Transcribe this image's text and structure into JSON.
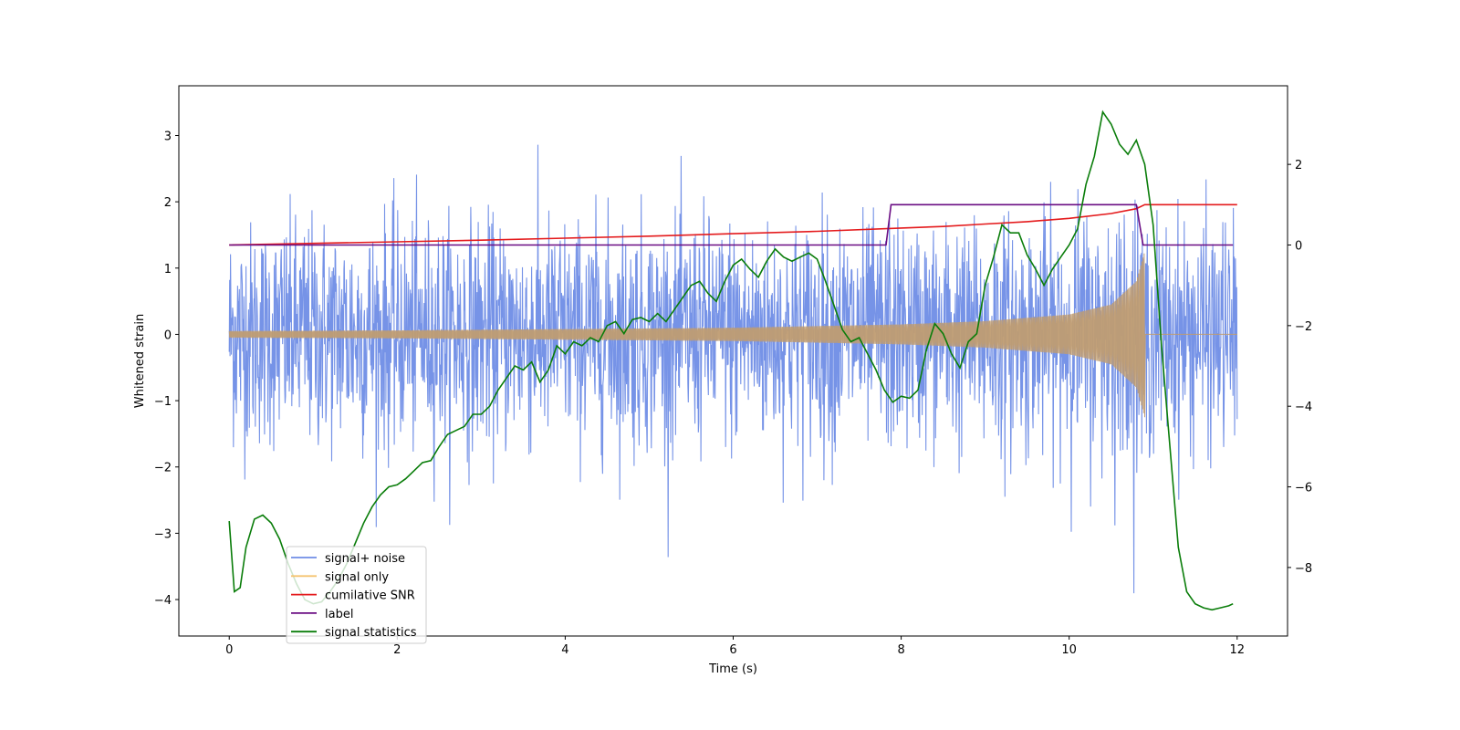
{
  "chart_data": {
    "type": "line",
    "xlabel": "Time (s)",
    "ylabel": "Whitened strain",
    "xlim": [
      -0.6,
      12.6
    ],
    "ylim": [
      -4.55,
      3.75
    ],
    "y2lim": [
      -9.7,
      3.95
    ],
    "xticks": [
      0,
      2,
      4,
      6,
      8,
      10,
      12
    ],
    "yticks": [
      -4,
      -3,
      -2,
      -1,
      0,
      1,
      2,
      3
    ],
    "y2ticks": [
      -8,
      -6,
      -4,
      -2,
      0,
      2
    ],
    "legend_position": "lower-left",
    "series": [
      {
        "name": "signal+ noise",
        "color": "#6f8de6",
        "axis": "left",
        "description": "dense noise trace between roughly -3.0 and 3.4, plus the chirp",
        "approx_range": [
          -4.15,
          3.38
        ]
      },
      {
        "name": "signal only",
        "color": "#f5c470",
        "axis": "left",
        "description": "chirp whose envelope grows from ~0.05 to ~1.25 and ends near 10.9 s",
        "envelope": {
          "x": [
            0,
            2,
            4,
            6,
            8,
            9,
            10,
            10.5,
            10.8,
            10.9
          ],
          "amp": [
            0.05,
            0.06,
            0.08,
            0.1,
            0.15,
            0.2,
            0.3,
            0.45,
            0.8,
            1.25
          ]
        }
      },
      {
        "name": "cumilative SNR",
        "color": "#e41a1c",
        "axis": "right",
        "x": [
          0,
          1,
          2,
          3,
          4,
          5,
          6,
          7,
          8,
          8.5,
          9,
          9.5,
          10,
          10.5,
          10.8,
          10.9,
          12
        ],
        "y": [
          0.0,
          0.04,
          0.08,
          0.12,
          0.17,
          0.22,
          0.28,
          0.34,
          0.42,
          0.46,
          0.52,
          0.58,
          0.66,
          0.78,
          0.9,
          1.0,
          1.0
        ]
      },
      {
        "name": "label",
        "color": "#6a0d83",
        "axis": "right",
        "x": [
          0,
          7.82,
          7.88,
          10.8,
          10.88,
          11.95
        ],
        "y": [
          0,
          0,
          1,
          1,
          0,
          0
        ]
      },
      {
        "name": "signal statistics",
        "color": "#0a7d0a",
        "axis": "right",
        "x": [
          0,
          0.06,
          0.13,
          0.2,
          0.3,
          0.4,
          0.5,
          0.6,
          0.7,
          0.8,
          0.9,
          1.0,
          1.1,
          1.2,
          1.3,
          1.4,
          1.5,
          1.6,
          1.7,
          1.8,
          1.9,
          2.0,
          2.1,
          2.2,
          2.3,
          2.4,
          2.5,
          2.6,
          2.7,
          2.8,
          2.9,
          3.0,
          3.1,
          3.2,
          3.3,
          3.4,
          3.5,
          3.6,
          3.7,
          3.8,
          3.9,
          4.0,
          4.1,
          4.2,
          4.3,
          4.4,
          4.5,
          4.6,
          4.7,
          4.8,
          4.9,
          5.0,
          5.1,
          5.2,
          5.3,
          5.4,
          5.5,
          5.6,
          5.7,
          5.8,
          5.9,
          6.0,
          6.1,
          6.2,
          6.3,
          6.4,
          6.5,
          6.6,
          6.7,
          6.8,
          6.9,
          7.0,
          7.1,
          7.2,
          7.3,
          7.4,
          7.5,
          7.6,
          7.7,
          7.8,
          7.9,
          8.0,
          8.1,
          8.2,
          8.3,
          8.4,
          8.5,
          8.6,
          8.7,
          8.8,
          8.9,
          9.0,
          9.1,
          9.2,
          9.3,
          9.4,
          9.5,
          9.6,
          9.7,
          9.8,
          9.9,
          10.0,
          10.1,
          10.2,
          10.3,
          10.4,
          10.5,
          10.6,
          10.7,
          10.8,
          10.9,
          11.0,
          11.1,
          11.2,
          11.3,
          11.4,
          11.5,
          11.6,
          11.7,
          11.8,
          11.9,
          11.95
        ],
        "y": [
          -6.85,
          -8.6,
          -8.5,
          -7.5,
          -6.8,
          -6.7,
          -6.9,
          -7.3,
          -7.9,
          -8.4,
          -8.8,
          -8.9,
          -8.85,
          -8.6,
          -8.3,
          -7.9,
          -7.4,
          -6.9,
          -6.5,
          -6.2,
          -6.0,
          -5.95,
          -5.8,
          -5.6,
          -5.4,
          -5.35,
          -5.0,
          -4.7,
          -4.6,
          -4.5,
          -4.2,
          -4.2,
          -4.0,
          -3.6,
          -3.3,
          -3.0,
          -3.1,
          -2.9,
          -3.4,
          -3.1,
          -2.5,
          -2.7,
          -2.4,
          -2.5,
          -2.3,
          -2.4,
          -2.0,
          -1.9,
          -2.2,
          -1.85,
          -1.8,
          -1.9,
          -1.7,
          -1.9,
          -1.6,
          -1.3,
          -1.0,
          -0.9,
          -1.2,
          -1.4,
          -0.9,
          -0.5,
          -0.35,
          -0.6,
          -0.8,
          -0.4,
          -0.1,
          -0.3,
          -0.4,
          -0.3,
          -0.2,
          -0.35,
          -0.9,
          -1.5,
          -2.1,
          -2.4,
          -2.3,
          -2.7,
          -3.1,
          -3.6,
          -3.9,
          -3.75,
          -3.8,
          -3.6,
          -2.6,
          -1.95,
          -2.2,
          -2.7,
          -3.05,
          -2.4,
          -2.2,
          -1.0,
          -0.3,
          0.5,
          0.3,
          0.3,
          -0.25,
          -0.6,
          -1.0,
          -0.6,
          -0.3,
          0.0,
          0.4,
          1.5,
          2.2,
          3.3,
          3.0,
          2.5,
          2.25,
          2.6,
          2.0,
          0.5,
          -2.5,
          -5.0,
          -7.5,
          -8.6,
          -8.9,
          -9.0,
          -9.05,
          -9.0,
          -8.95,
          -8.9
        ]
      }
    ]
  }
}
